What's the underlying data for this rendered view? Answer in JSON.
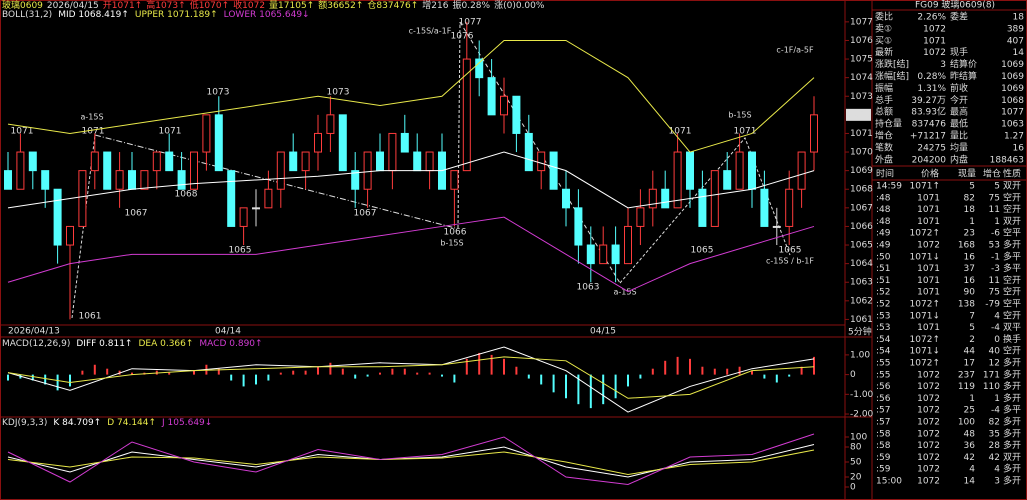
{
  "quote_line": [
    "玻璃0609",
    "2026/04/15",
    "开1071↑",
    "高1073↑",
    "低1070↑",
    "收1072",
    "量17105↑",
    "额36652↑",
    "仓837476↑",
    "增216",
    "振0.28%",
    "涨(0)0.00%"
  ],
  "chart_data": [
    {
      "type": "candlestick",
      "title": "BOLL(31,2)",
      "ylim": [
        1060.7,
        1077.1
      ],
      "yticks": [
        1061,
        1062,
        1063,
        1064,
        1065,
        1066,
        1067,
        1068,
        1069,
        1070,
        1071,
        1073,
        1074,
        1075,
        1076,
        1077
      ],
      "last_price": 1072,
      "candles": [
        [
          1069,
          1070,
          1068,
          1068
        ],
        [
          1068,
          1071,
          1068,
          1070
        ],
        [
          1070,
          1070,
          1068,
          1069
        ],
        [
          1069,
          1069,
          1067,
          1068
        ],
        [
          1068,
          1068,
          1064,
          1065
        ],
        [
          1065,
          1066,
          1061,
          1066
        ],
        [
          1066,
          1069,
          1066,
          1069
        ],
        [
          1069,
          1071,
          1068,
          1070
        ],
        [
          1070,
          1070,
          1068,
          1068
        ],
        [
          1068,
          1070,
          1067,
          1069
        ],
        [
          1069,
          1070,
          1068,
          1068
        ],
        [
          1068,
          1069,
          1068,
          1069
        ],
        [
          1069,
          1070,
          1068,
          1070
        ],
        [
          1070,
          1071,
          1069,
          1069
        ],
        [
          1069,
          1070,
          1068,
          1068
        ],
        [
          1068,
          1070,
          1068,
          1070
        ],
        [
          1070,
          1072,
          1069,
          1072
        ],
        [
          1072,
          1073,
          1069,
          1069
        ],
        [
          1069,
          1069,
          1066,
          1066
        ],
        [
          1066,
          1067,
          1065,
          1067
        ],
        [
          1067,
          1068,
          1066,
          1067
        ],
        [
          1067,
          1069,
          1067,
          1068
        ],
        [
          1068,
          1070,
          1067,
          1070
        ],
        [
          1070,
          1071,
          1069,
          1069
        ],
        [
          1069,
          1070,
          1068,
          1070
        ],
        [
          1070,
          1072,
          1069,
          1071
        ],
        [
          1071,
          1073,
          1070,
          1072
        ],
        [
          1072,
          1072,
          1069,
          1069
        ],
        [
          1069,
          1070,
          1067,
          1068
        ],
        [
          1068,
          1070,
          1067,
          1070
        ],
        [
          1070,
          1071,
          1069,
          1069
        ],
        [
          1069,
          1071,
          1068,
          1071
        ],
        [
          1071,
          1072,
          1070,
          1070
        ],
        [
          1070,
          1071,
          1069,
          1069
        ],
        [
          1069,
          1070,
          1068,
          1070
        ],
        [
          1070,
          1071,
          1068,
          1068
        ],
        [
          1068,
          1069,
          1066,
          1069
        ],
        [
          1069,
          1077,
          1069,
          1075
        ],
        [
          1075,
          1076,
          1073,
          1074
        ],
        [
          1074,
          1075,
          1072,
          1072
        ],
        [
          1072,
          1074,
          1071,
          1073
        ],
        [
          1073,
          1073,
          1070,
          1071
        ],
        [
          1071,
          1072,
          1069,
          1069
        ],
        [
          1069,
          1070,
          1068,
          1070
        ],
        [
          1070,
          1070,
          1068,
          1068
        ],
        [
          1068,
          1069,
          1066,
          1067
        ],
        [
          1067,
          1068,
          1064,
          1065
        ],
        [
          1065,
          1066,
          1063,
          1064
        ],
        [
          1064,
          1066,
          1064,
          1065
        ],
        [
          1065,
          1066,
          1063,
          1064
        ],
        [
          1064,
          1067,
          1064,
          1066
        ],
        [
          1066,
          1068,
          1065,
          1067
        ],
        [
          1067,
          1069,
          1066,
          1068
        ],
        [
          1068,
          1069,
          1067,
          1067
        ],
        [
          1067,
          1071,
          1067,
          1070
        ],
        [
          1070,
          1070,
          1067,
          1068
        ],
        [
          1068,
          1069,
          1066,
          1066
        ],
        [
          1066,
          1069,
          1066,
          1069
        ],
        [
          1069,
          1070,
          1068,
          1068
        ],
        [
          1068,
          1071,
          1068,
          1070
        ],
        [
          1070,
          1070,
          1067,
          1068
        ],
        [
          1068,
          1069,
          1066,
          1066
        ],
        [
          1066,
          1067,
          1065,
          1066
        ],
        [
          1066,
          1069,
          1065,
          1068
        ],
        [
          1068,
          1070,
          1067,
          1070
        ],
        [
          1070,
          1073,
          1069,
          1072
        ]
      ],
      "x": [
        0,
        5,
        10,
        15,
        20,
        25,
        30,
        35,
        40,
        45,
        50,
        55,
        60,
        65
      ],
      "series": [
        {
          "name": "MID 1068.419↑",
          "color": "#ffffff",
          "values": [
            1067,
            1067.5,
            1068,
            1068.3,
            1068.5,
            1068.7,
            1069,
            1069,
            1070,
            1069,
            1067,
            1067.5,
            1068,
            1069
          ]
        },
        {
          "name": "UPPER 1071.189↑",
          "color": "#e8e84a",
          "values": [
            1071.5,
            1071,
            1071.5,
            1072,
            1072.5,
            1073,
            1072.5,
            1073,
            1076,
            1076,
            1074,
            1070,
            1071,
            1074
          ]
        },
        {
          "name": "LOWER 1065.649↓",
          "color": "#d23cd2",
          "values": [
            1063,
            1064,
            1064.5,
            1064.5,
            1064.5,
            1065,
            1065.5,
            1066,
            1066.5,
            1064.5,
            1062.5,
            1064,
            1065,
            1066
          ]
        }
      ],
      "price_labels": [
        1077,
        1076,
        1073,
        1073,
        1071,
        1071,
        1071,
        1071,
        1071,
        1068,
        1067,
        1067,
        1066,
        1065,
        1065,
        1065,
        1063,
        1061
      ],
      "wave_labels": [
        "a-15S",
        "c-15S/a-1F",
        "b-15S",
        "b-15S",
        "a-15S",
        "c-1F/a-5F",
        "c-15S / b-1F"
      ],
      "time_labels": [
        "2026/04/13",
        "04/14",
        "04/15"
      ],
      "period": "5分钟"
    },
    {
      "type": "macd",
      "title": "MACD(12,26,9)",
      "ylim": [
        -2.1,
        1.35
      ],
      "yticks": [
        {
          "value": 1,
          "label": "1.00"
        },
        0,
        {
          "value": -1,
          "label": "-1.00"
        },
        {
          "value": -2,
          "label": "-2.00"
        }
      ],
      "x": [
        0,
        5,
        10,
        15,
        20,
        25,
        30,
        35,
        40,
        45,
        50,
        55,
        60,
        65
      ],
      "histogram": {
        "name": "MACD 0.890↑",
        "values": [
          -0.3,
          -0.2,
          -0.3,
          -0.5,
          -0.8,
          -0.6,
          0.2,
          0.5,
          0.3,
          0.2,
          0.1,
          0.1,
          0.2,
          0.1,
          0,
          0.2,
          0.5,
          0.3,
          -0.3,
          -0.6,
          -0.5,
          -0.3,
          0.1,
          0.2,
          0.2,
          0.4,
          0.6,
          0.3,
          -0.2,
          -0.1,
          0.1,
          0.3,
          0.3,
          0.1,
          0.1,
          -0.1,
          -0.4,
          0.8,
          1.1,
          1.0,
          0.8,
          0.4,
          -0.2,
          -0.5,
          -0.9,
          -1.2,
          -1.5,
          -1.7,
          -1.5,
          -1.2,
          -0.6,
          -0.2,
          0.3,
          0.7,
          0.9,
          0.8,
          0.4,
          0.3,
          0.3,
          0.4,
          0.2,
          -0.2,
          -0.4,
          -0.1,
          0.4,
          0.9
        ]
      },
      "series": [
        {
          "name": "DIFF 0.811↑",
          "color": "#ffffff",
          "values": [
            0.1,
            -0.8,
            0.3,
            0.2,
            0.5,
            0.4,
            0.6,
            0.5,
            1.4,
            0.2,
            -1.9,
            -0.6,
            0.3,
            0.8
          ]
        },
        {
          "name": "DEA 0.366↑",
          "color": "#e8e84a",
          "values": [
            0.1,
            -0.4,
            0.0,
            0.2,
            0.3,
            0.4,
            0.4,
            0.5,
            0.9,
            0.7,
            -1.2,
            -1.0,
            0.2,
            0.4
          ]
        }
      ]
    },
    {
      "type": "kdj",
      "title": "KDJ(9,3,3)",
      "ylim": [
        -18,
        124
      ],
      "yticks": [
        100,
        80,
        50,
        20,
        0
      ],
      "x": [
        0,
        5,
        10,
        15,
        20,
        25,
        30,
        35,
        40,
        45,
        50,
        55,
        60,
        65
      ],
      "series": [
        {
          "name": "K 84.709↑",
          "color": "#ffffff",
          "values": [
            60,
            30,
            70,
            55,
            40,
            65,
            55,
            60,
            80,
            40,
            20,
            50,
            55,
            85
          ]
        },
        {
          "name": "D 74.144↑",
          "color": "#e8e84a",
          "values": [
            55,
            40,
            60,
            58,
            45,
            60,
            55,
            58,
            70,
            50,
            25,
            45,
            50,
            74
          ]
        },
        {
          "name": "J 105.649↓",
          "color": "#d23cd2",
          "values": [
            70,
            10,
            90,
            50,
            30,
            75,
            55,
            65,
            100,
            20,
            5,
            60,
            65,
            106
          ]
        }
      ]
    }
  ],
  "quote_panel": {
    "header": "FG09 玻璃0609(8)",
    "rows": [
      [
        "委比",
        "2.26%",
        "委差",
        "18"
      ],
      [
        "卖①",
        "1072",
        "",
        "389"
      ],
      [
        "买①",
        "1071",
        "",
        "407"
      ],
      [
        "最新",
        "1072",
        "现手",
        "14"
      ],
      [
        "涨跌[结]",
        "3",
        "结算价",
        "1069"
      ],
      [
        "涨幅[结]",
        "0.28%",
        "昨结算",
        "1069"
      ],
      [
        "振幅",
        "1.31%",
        "前收",
        "1069"
      ],
      [
        "总手",
        "39.27万",
        "今开",
        "1068"
      ],
      [
        "总额",
        "83.93亿",
        "最高",
        "1077"
      ],
      [
        "持仓量",
        "837476",
        "最低",
        "1063"
      ],
      [
        "增仓",
        "+71217",
        "量比",
        "1.27"
      ],
      [
        "笔数",
        "24275",
        "均量",
        "16"
      ],
      [
        "外盘",
        "204200",
        "内盘",
        "188463"
      ]
    ]
  },
  "ticks_panel": {
    "columns": [
      "时间",
      "价格",
      "现量",
      "增仓",
      "性质"
    ],
    "rows": [
      [
        "14:59",
        "1071↑",
        "5",
        "5",
        "双开"
      ],
      [
        ":48",
        "1071",
        "82",
        "75",
        "空开"
      ],
      [
        ":48",
        "1071",
        "18",
        "11",
        "空开"
      ],
      [
        ":48",
        "1071",
        "1",
        "1",
        "双开"
      ],
      [
        ":49",
        "1072↑",
        "23",
        "-6",
        "空平"
      ],
      [
        ":49",
        "1072",
        "168",
        "53",
        "多开"
      ],
      [
        ":50",
        "1071↓",
        "16",
        "-1",
        "多平"
      ],
      [
        ":51",
        "1071",
        "37",
        "-3",
        "多平"
      ],
      [
        ":51",
        "1071",
        "16",
        "11",
        "空开"
      ],
      [
        ":52",
        "1071",
        "90",
        "75",
        "空开"
      ],
      [
        ":52",
        "1072↑",
        "138",
        "-79",
        "空平"
      ],
      [
        ":53",
        "1071↓",
        "7",
        "4",
        "空开"
      ],
      [
        ":53",
        "1071",
        "5",
        "-4",
        "双平"
      ],
      [
        ":54",
        "1072↑",
        "2",
        "0",
        "换手"
      ],
      [
        ":54",
        "1071↓",
        "44",
        "40",
        "空开"
      ],
      [
        ":55",
        "1072↑",
        "17",
        "12",
        "多开"
      ],
      [
        ":55",
        "1072",
        "237",
        "171",
        "多开"
      ],
      [
        ":56",
        "1072",
        "119",
        "110",
        "多开"
      ],
      [
        ":56",
        "1072",
        "1",
        "1",
        "多开"
      ],
      [
        ":57",
        "1072",
        "25",
        "-4",
        "多平"
      ],
      [
        ":57",
        "1072",
        "100",
        "82",
        "多开"
      ],
      [
        ":58",
        "1072",
        "48",
        "35",
        "多开"
      ],
      [
        ":58",
        "1072",
        "36",
        "28",
        "多开"
      ],
      [
        ":59",
        "1072",
        "42",
        "42",
        "双开"
      ],
      [
        ":59",
        "1072",
        "4",
        "4",
        "多开"
      ],
      [
        "15:00",
        "1072",
        "14",
        "3",
        "多开"
      ]
    ]
  }
}
